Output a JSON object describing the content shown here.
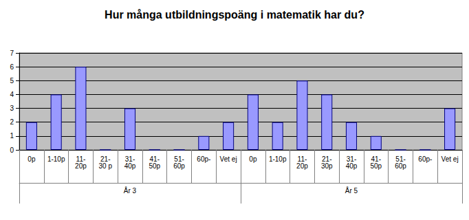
{
  "chart_data": {
    "type": "bar",
    "title": "Hur många utbildningspoäng i matematik har du?",
    "groups": [
      {
        "name": "År 3",
        "categories": [
          "0p",
          "1-10p",
          "11-20p",
          "21-30 p",
          "31-40p",
          "41-50p",
          "51-60p",
          "60p-",
          "Vet ej"
        ],
        "values": [
          2,
          4,
          6,
          0,
          3,
          0,
          0,
          1,
          2
        ]
      },
      {
        "name": "År 5",
        "categories": [
          "0p",
          "1-10p",
          "11-20p",
          "21-30p",
          "31-40p",
          "41-50p",
          "51-60p",
          "60p-",
          "Vet ej"
        ],
        "values": [
          4,
          2,
          5,
          4,
          2,
          1,
          0,
          0,
          3
        ]
      }
    ],
    "color": "#9999ff",
    "ylim": [
      0,
      7
    ],
    "yticks": [
      0,
      1,
      2,
      3,
      4,
      5,
      6,
      7
    ],
    "grid": true
  }
}
